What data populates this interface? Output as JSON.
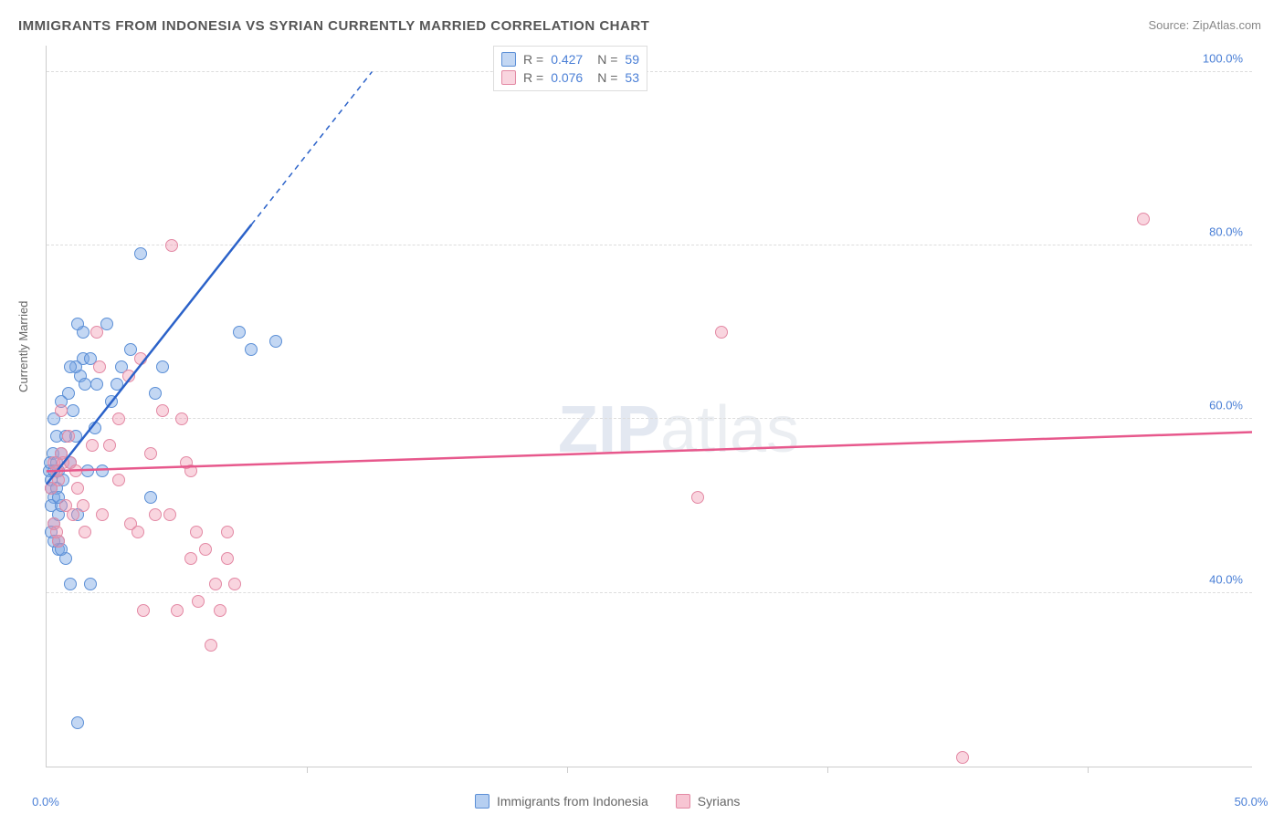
{
  "title": "IMMIGRANTS FROM INDONESIA VS SYRIAN CURRENTLY MARRIED CORRELATION CHART",
  "source": "Source: ZipAtlas.com",
  "watermark_a": "ZIP",
  "watermark_b": "atlas",
  "ylabel": "Currently Married",
  "chart": {
    "type": "scatter",
    "xlim": [
      0,
      50
    ],
    "ylim": [
      20,
      103
    ],
    "xticks": [
      0,
      50
    ],
    "xticklabels": [
      "0.0%",
      "50.0%"
    ],
    "yticks": [
      40,
      60,
      80,
      100
    ],
    "yticklabels": [
      "40.0%",
      "60.0%",
      "80.0%",
      "100.0%"
    ],
    "xminor": [
      10.8,
      21.6,
      32.4,
      43.2
    ],
    "background_color": "#ffffff",
    "grid_color": "#dddddd",
    "marker_radius": 7,
    "series": [
      {
        "name": "Immigrants from Indonesia",
        "fill": "rgba(122,167,229,0.45)",
        "stroke": "#5b8fd6",
        "line_color": "#2b62c9",
        "line": {
          "x1": 0,
          "y1": 52.5,
          "x2": 13.5,
          "y2": 100
        },
        "line_dash_after_x": 8.5,
        "r_label": "R =",
        "r_value": "0.427",
        "n_label": "N =",
        "n_value": "59",
        "points": [
          [
            0.1,
            54
          ],
          [
            0.2,
            53
          ],
          [
            0.15,
            55
          ],
          [
            0.2,
            52
          ],
          [
            0.3,
            51
          ],
          [
            0.25,
            56
          ],
          [
            0.3,
            48
          ],
          [
            0.2,
            50
          ],
          [
            0.4,
            55
          ],
          [
            0.4,
            52
          ],
          [
            0.5,
            54
          ],
          [
            0.3,
            54
          ],
          [
            0.5,
            49
          ],
          [
            0.4,
            58
          ],
          [
            0.6,
            56
          ],
          [
            0.3,
            60
          ],
          [
            0.2,
            47
          ],
          [
            0.3,
            46
          ],
          [
            0.6,
            50
          ],
          [
            0.5,
            51
          ],
          [
            0.7,
            53
          ],
          [
            0.5,
            45
          ],
          [
            0.8,
            58
          ],
          [
            0.9,
            63
          ],
          [
            0.6,
            62
          ],
          [
            1.0,
            55
          ],
          [
            1.1,
            61
          ],
          [
            1.2,
            58
          ],
          [
            1.3,
            49
          ],
          [
            1.5,
            70
          ],
          [
            1.5,
            67
          ],
          [
            1.4,
            65
          ],
          [
            1.2,
            66
          ],
          [
            1.6,
            64
          ],
          [
            1.8,
            67
          ],
          [
            1.3,
            71
          ],
          [
            1.0,
            66
          ],
          [
            1.7,
            54
          ],
          [
            2.0,
            59
          ],
          [
            2.1,
            64
          ],
          [
            2.3,
            54
          ],
          [
            2.5,
            71
          ],
          [
            2.7,
            62
          ],
          [
            2.9,
            64
          ],
          [
            3.1,
            66
          ],
          [
            3.5,
            68
          ],
          [
            3.9,
            79
          ],
          [
            4.3,
            51
          ],
          [
            4.5,
            63
          ],
          [
            4.8,
            66
          ],
          [
            1.0,
            41
          ],
          [
            1.8,
            41
          ],
          [
            1.3,
            25
          ],
          [
            8.5,
            68
          ],
          [
            8.0,
            70
          ],
          [
            9.5,
            69
          ],
          [
            0.5,
            46
          ],
          [
            0.8,
            44
          ],
          [
            0.6,
            45
          ]
        ]
      },
      {
        "name": "Syrians",
        "fill": "rgba(240,150,175,0.40)",
        "stroke": "#e389a4",
        "line_color": "#e7588c",
        "line": {
          "x1": 0,
          "y1": 54,
          "x2": 50,
          "y2": 58.5
        },
        "r_label": "R =",
        "r_value": "0.076",
        "n_label": "N =",
        "n_value": "53",
        "points": [
          [
            0.2,
            52
          ],
          [
            0.3,
            55
          ],
          [
            0.3,
            48
          ],
          [
            0.5,
            53
          ],
          [
            0.4,
            54
          ],
          [
            0.6,
            56
          ],
          [
            0.5,
            46
          ],
          [
            0.4,
            47
          ],
          [
            0.8,
            50
          ],
          [
            0.7,
            55
          ],
          [
            1.0,
            55
          ],
          [
            0.9,
            58
          ],
          [
            1.2,
            54
          ],
          [
            1.1,
            49
          ],
          [
            1.3,
            52
          ],
          [
            1.6,
            47
          ],
          [
            1.5,
            50
          ],
          [
            1.9,
            57
          ],
          [
            2.1,
            70
          ],
          [
            2.3,
            49
          ],
          [
            2.6,
            57
          ],
          [
            3.0,
            53
          ],
          [
            3.0,
            60
          ],
          [
            3.4,
            65
          ],
          [
            3.5,
            48
          ],
          [
            3.8,
            47
          ],
          [
            3.9,
            67
          ],
          [
            4.3,
            56
          ],
          [
            4.5,
            49
          ],
          [
            4.8,
            61
          ],
          [
            5.1,
            49
          ],
          [
            5.2,
            80
          ],
          [
            5.4,
            38
          ],
          [
            5.6,
            60
          ],
          [
            5.8,
            55
          ],
          [
            6.0,
            44
          ],
          [
            6.0,
            54
          ],
          [
            6.2,
            47
          ],
          [
            6.3,
            39
          ],
          [
            6.6,
            45
          ],
          [
            6.8,
            34
          ],
          [
            7.0,
            41
          ],
          [
            7.2,
            38
          ],
          [
            7.5,
            44
          ],
          [
            7.5,
            47
          ],
          [
            7.8,
            41
          ],
          [
            4.0,
            38
          ],
          [
            2.2,
            66
          ],
          [
            27.0,
            51
          ],
          [
            28.0,
            70
          ],
          [
            38.0,
            21
          ],
          [
            45.5,
            83
          ],
          [
            0.6,
            61
          ]
        ]
      }
    ]
  },
  "bottom_legend": [
    {
      "label": "Immigrants from Indonesia",
      "fill": "rgba(122,167,229,0.55)",
      "stroke": "#5b8fd6"
    },
    {
      "label": "Syrians",
      "fill": "rgba(240,150,175,0.55)",
      "stroke": "#e389a4"
    }
  ]
}
